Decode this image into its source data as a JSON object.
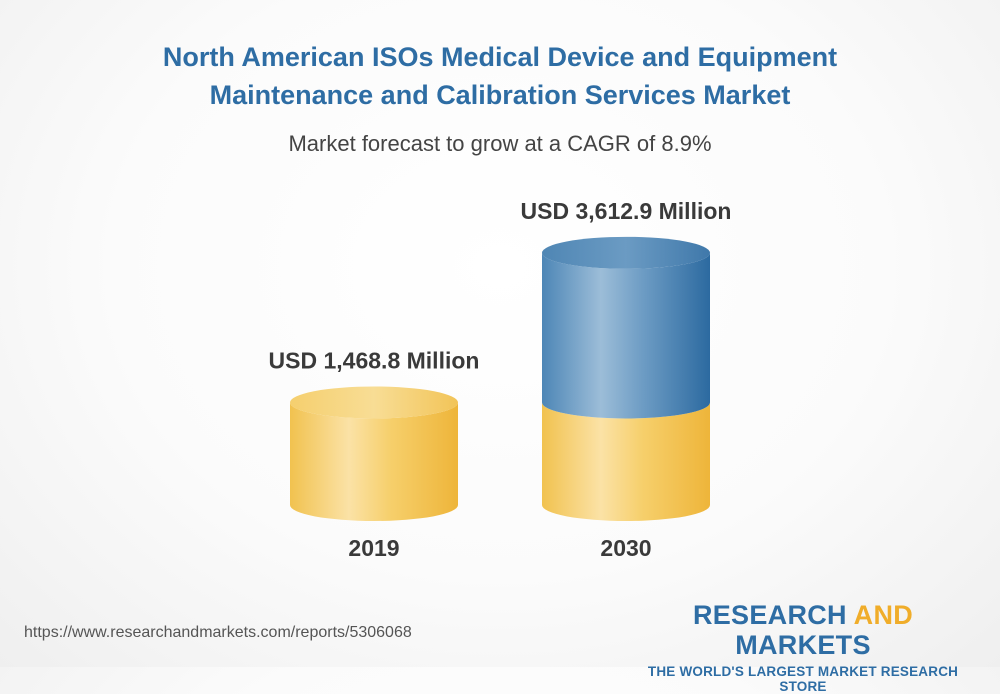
{
  "header": {
    "title_line1": "North American ISOs Medical Device and Equipment",
    "title_line2": "Maintenance and Calibration Services Market",
    "subtitle": "Market forecast to grow at a CAGR of 8.9%"
  },
  "chart_data": {
    "type": "bar",
    "categories": [
      "2019",
      "2030"
    ],
    "values": [
      1468.8,
      3612.9
    ],
    "value_labels": [
      "USD 1,468.8 Million",
      "USD 3,612.9 Million"
    ],
    "title": "North American ISOs Medical Device and Equipment Maintenance and Calibration Services Market",
    "subtitle": "Market forecast to grow at a CAGR of 8.9%",
    "colors": {
      "base": "#f3c95a",
      "growth": "#3d78aa"
    }
  },
  "footer": {
    "url": "https://www.researchandmarkets.com/reports/5306068",
    "brand_part1": "RESEARCH ",
    "brand_part2": "AND",
    "brand_part3": " MARKETS",
    "brand_tagline": "THE WORLD'S LARGEST MARKET RESEARCH STORE"
  }
}
